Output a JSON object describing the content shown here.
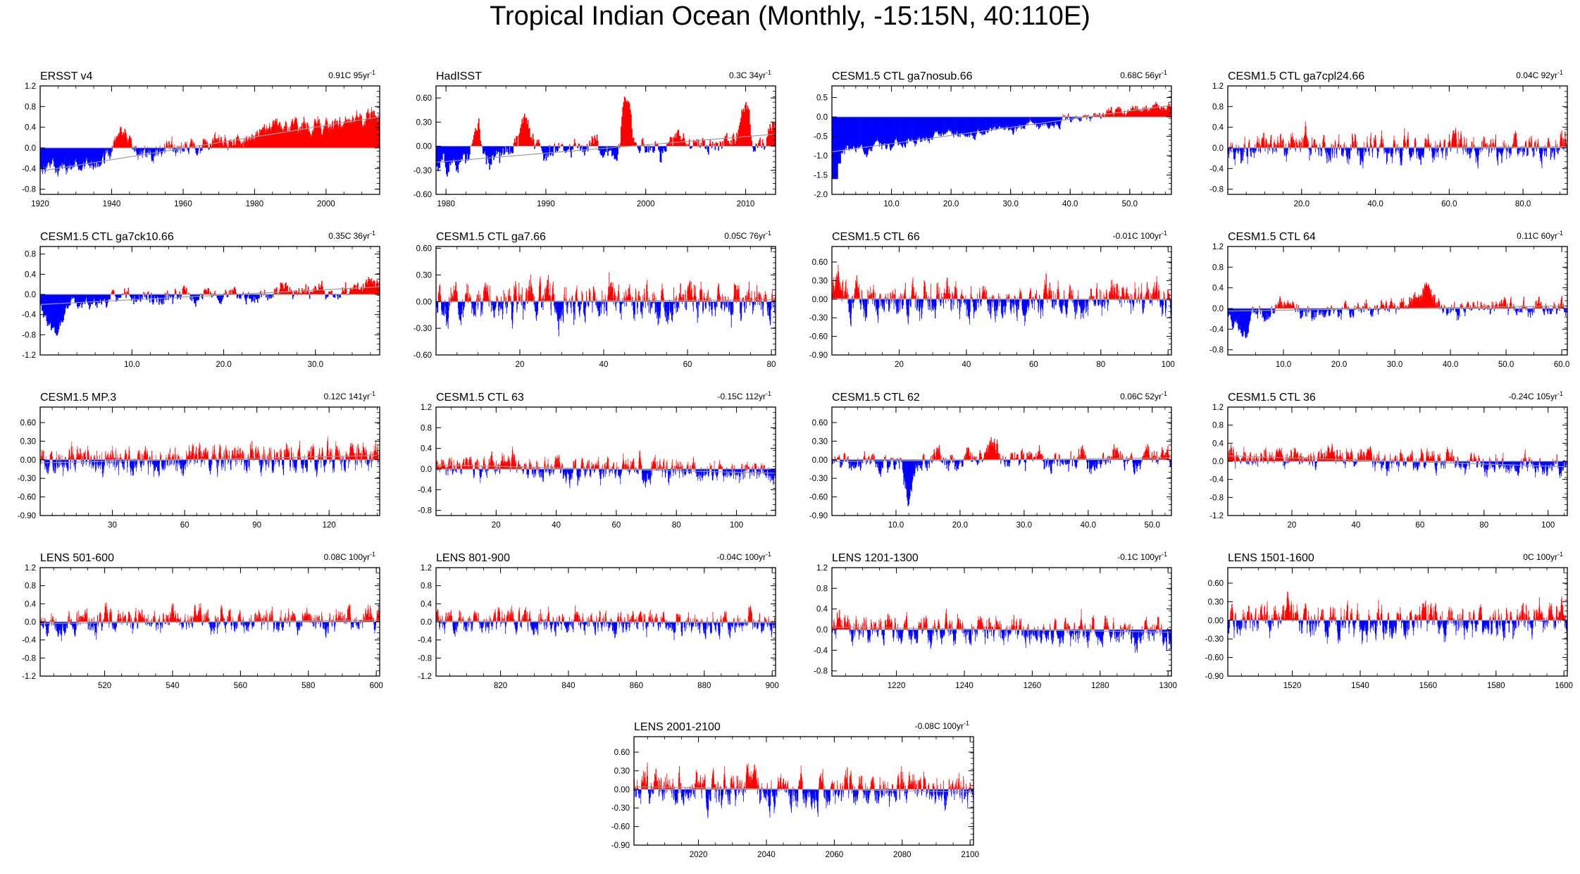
{
  "title": "Tropical Indian Ocean (Monthly, -15:15N, 40:110E)",
  "colors": {
    "positive": "#ff0000",
    "negative": "#0000ff",
    "axis": "#000000",
    "zero_line": "#999999"
  },
  "chart_data": [
    {
      "type": "bar",
      "name": "ERSST v4",
      "subtitle": "0.91C 95yr",
      "sup": "-1",
      "xlim": [
        1920,
        2015
      ],
      "xticks": [
        1920,
        1940,
        1960,
        1980,
        2000
      ],
      "ylim": [
        -0.9,
        1.2
      ],
      "yticks": [
        "-0.8",
        "-0.4",
        "0.0",
        "0.4",
        "0.8",
        "1.2"
      ],
      "trend": [
        -0.45,
        0.6
      ],
      "amp": 0.18,
      "events": [
        [
          1943,
          0.45,
          4
        ],
        [
          1985,
          0.3,
          3
        ]
      ],
      "seed": 1
    },
    {
      "type": "bar",
      "name": "HadISST",
      "subtitle": "0.3C 34yr",
      "sup": "-1",
      "xlim": [
        1979,
        2013
      ],
      "xticks": [
        1980,
        1990,
        2000,
        2010
      ],
      "ylim": [
        -0.6,
        0.75
      ],
      "yticks": [
        "-0.60",
        "-0.30",
        "0.00",
        "0.30",
        "0.60"
      ],
      "trend": [
        -0.2,
        0.15
      ],
      "amp": 0.18,
      "events": [
        [
          1983,
          0.45,
          1
        ],
        [
          1988,
          0.45,
          1.2
        ],
        [
          1998,
          0.65,
          0.8
        ],
        [
          2010,
          0.35,
          0.8
        ]
      ],
      "seed": 2
    },
    {
      "type": "bar",
      "name": "CESM1.5 CTL ga7nosub.66",
      "subtitle": "0.68C 56yr",
      "sup": "-1",
      "xlim": [
        0,
        57
      ],
      "xticks": [
        "10.0",
        "20.0",
        "30.0",
        "40.0",
        "50.0"
      ],
      "ylim": [
        -2.0,
        0.8
      ],
      "yticks": [
        "-2.0",
        "-1.5",
        "-1.0",
        "-0.5",
        "0.0",
        "0.5"
      ],
      "trend": [
        -0.9,
        0.3
      ],
      "amp": 0.15,
      "events": [],
      "seed": 3,
      "spike": [
        [
          0.5,
          -1.6
        ],
        [
          1,
          -1.2
        ]
      ]
    },
    {
      "type": "bar",
      "name": "CESM1.5 CTL ga7cpl24.66",
      "subtitle": "0.04C 92yr",
      "sup": "-1",
      "xlim": [
        0,
        92
      ],
      "xticks": [
        "20.0",
        "40.0",
        "60.0",
        "80.0"
      ],
      "ylim": [
        -0.9,
        1.2
      ],
      "yticks": [
        "-0.8",
        "-0.4",
        "0.0",
        "0.4",
        "0.8",
        "1.2"
      ],
      "trend": [
        0,
        0.02
      ],
      "amp": 0.3,
      "events": [],
      "seed": 4
    },
    {
      "type": "bar",
      "name": "CESM1.5 CTL ga7ck10.66",
      "subtitle": "0.35C 36yr",
      "sup": "-1",
      "xlim": [
        0,
        37
      ],
      "xticks": [
        "10.0",
        "20.0",
        "30.0"
      ],
      "ylim": [
        -1.2,
        0.95
      ],
      "yticks": [
        "-1.2",
        "-0.8",
        "-0.4",
        "0.0",
        "0.4",
        "0.8"
      ],
      "trend": [
        -0.2,
        0.15
      ],
      "amp": 0.2,
      "events": [
        [
          1.5,
          -0.7,
          1.5
        ]
      ],
      "seed": 5
    },
    {
      "type": "bar",
      "name": "CESM1.5 CTL ga7.66",
      "subtitle": "0.05C 76yr",
      "sup": "-1",
      "xlim": [
        0,
        81
      ],
      "xticks": [
        20,
        40,
        60,
        80
      ],
      "ylim": [
        -0.6,
        0.62
      ],
      "yticks": [
        "-0.60",
        "-0.30",
        "0.00",
        "0.30",
        "0.60"
      ],
      "trend": [
        0,
        0.02
      ],
      "amp": 0.25,
      "events": [],
      "seed": 6
    },
    {
      "type": "bar",
      "name": "CESM1.5 CTL 66",
      "subtitle": "-0.01C 100yr",
      "sup": "-1",
      "xlim": [
        0,
        101
      ],
      "xticks": [
        20,
        40,
        60,
        80,
        100
      ],
      "ylim": [
        -0.9,
        0.85
      ],
      "yticks": [
        "-0.90",
        "-0.60",
        "-0.30",
        "0.00",
        "0.30",
        "0.60"
      ],
      "trend": [
        0.01,
        -0.01
      ],
      "amp": 0.3,
      "events": [
        [
          1.5,
          0.4,
          2
        ]
      ],
      "seed": 7
    },
    {
      "type": "bar",
      "name": "CESM1.5 CTL 64",
      "subtitle": "0.11C 60yr",
      "sup": "-1",
      "xlim": [
        0,
        61
      ],
      "xticks": [
        "10.0",
        "20.0",
        "30.0",
        "40.0",
        "50.0",
        "60.0"
      ],
      "ylim": [
        -0.9,
        1.2
      ],
      "yticks": [
        "-0.8",
        "-0.4",
        "0.0",
        "0.4",
        "0.8",
        "1.2"
      ],
      "trend": [
        -0.05,
        0.05
      ],
      "amp": 0.2,
      "events": [
        [
          2.5,
          -0.45,
          2.5
        ],
        [
          35,
          0.3,
          3
        ]
      ],
      "seed": 8
    },
    {
      "type": "bar",
      "name": "CESM1.5 MP.3",
      "subtitle": "0.12C 141yr",
      "sup": "-1",
      "xlim": [
        0,
        141
      ],
      "xticks": [
        30,
        60,
        90,
        120
      ],
      "ylim": [
        -0.9,
        0.85
      ],
      "yticks": [
        "-0.90",
        "-0.60",
        "-0.30",
        "0.00",
        "0.30",
        "0.60"
      ],
      "trend": [
        -0.05,
        0.07
      ],
      "amp": 0.25,
      "events": [],
      "seed": 9
    },
    {
      "type": "bar",
      "name": "CESM1.5 CTL 63",
      "subtitle": "-0.15C 112yr",
      "sup": "-1",
      "xlim": [
        0,
        113
      ],
      "xticks": [
        20,
        40,
        60,
        80,
        100
      ],
      "ylim": [
        -0.9,
        1.2
      ],
      "yticks": [
        "-0.8",
        "-0.4",
        "0.0",
        "0.4",
        "0.8",
        "1.2"
      ],
      "trend": [
        0.08,
        -0.08
      ],
      "amp": 0.25,
      "events": [],
      "seed": 10
    },
    {
      "type": "bar",
      "name": "CESM1.5 CTL 62",
      "subtitle": "0.06C 52yr",
      "sup": "-1",
      "xlim": [
        0,
        53
      ],
      "xticks": [
        "10.0",
        "20.0",
        "30.0",
        "40.0",
        "50.0"
      ],
      "ylim": [
        -0.9,
        0.85
      ],
      "yticks": [
        "-0.90",
        "-0.60",
        "-0.30",
        "0.00",
        "0.30",
        "0.60"
      ],
      "trend": [
        -0.03,
        0.03
      ],
      "amp": 0.2,
      "events": [
        [
          12,
          -0.55,
          1.2
        ],
        [
          25,
          0.3,
          2
        ]
      ],
      "seed": 11
    },
    {
      "type": "bar",
      "name": "CESM1.5 CTL 36",
      "subtitle": "-0.24C 105yr",
      "sup": "-1",
      "xlim": [
        0,
        106
      ],
      "xticks": [
        20,
        40,
        60,
        80,
        100
      ],
      "ylim": [
        -1.2,
        1.2
      ],
      "yticks": [
        "-1.2",
        "-0.8",
        "-0.4",
        "0.0",
        "0.4",
        "0.8",
        "1.2"
      ],
      "trend": [
        0.12,
        -0.12
      ],
      "amp": 0.25,
      "events": [],
      "seed": 12
    },
    {
      "type": "bar",
      "name": "LENS 501-600",
      "subtitle": "0.08C 100yr",
      "sup": "-1",
      "xlim": [
        501,
        601
      ],
      "xticks": [
        520,
        540,
        560,
        580,
        600
      ],
      "ylim": [
        -1.2,
        1.2
      ],
      "yticks": [
        "-1.2",
        "-0.8",
        "-0.4",
        "0.0",
        "0.4",
        "0.8",
        "1.2"
      ],
      "trend": [
        -0.04,
        0.04
      ],
      "amp": 0.3,
      "events": [],
      "seed": 13
    },
    {
      "type": "bar",
      "name": "LENS 801-900",
      "subtitle": "-0.04C 100yr",
      "sup": "-1",
      "xlim": [
        801,
        901
      ],
      "xticks": [
        820,
        840,
        860,
        880,
        900
      ],
      "ylim": [
        -1.2,
        1.2
      ],
      "yticks": [
        "-1.2",
        "-0.8",
        "-0.4",
        "0.0",
        "0.4",
        "0.8",
        "1.2"
      ],
      "trend": [
        0.02,
        -0.02
      ],
      "amp": 0.3,
      "events": [],
      "seed": 14
    },
    {
      "type": "bar",
      "name": "LENS 1201-1300",
      "subtitle": "-0.1C 100yr",
      "sup": "-1",
      "xlim": [
        1201,
        1301
      ],
      "xticks": [
        1220,
        1240,
        1260,
        1280,
        1300
      ],
      "ylim": [
        -0.9,
        1.2
      ],
      "yticks": [
        "-0.8",
        "-0.4",
        "0.0",
        "0.4",
        "0.8",
        "1.2"
      ],
      "trend": [
        0.05,
        -0.05
      ],
      "amp": 0.3,
      "events": [],
      "seed": 15
    },
    {
      "type": "bar",
      "name": "LENS 1501-1600",
      "subtitle": "0C 100yr",
      "sup": "-1",
      "xlim": [
        1501,
        1601
      ],
      "xticks": [
        1520,
        1540,
        1560,
        1580,
        1600
      ],
      "ylim": [
        -0.9,
        0.85
      ],
      "yticks": [
        "-0.90",
        "-0.60",
        "-0.30",
        "0.00",
        "0.30",
        "0.60"
      ],
      "trend": [
        0,
        0
      ],
      "amp": 0.3,
      "events": [],
      "seed": 16
    },
    {
      "type": "bar",
      "name": "LENS 2001-2100",
      "subtitle": "-0.08C 100yr",
      "sup": "-1",
      "xlim": [
        2001,
        2101
      ],
      "xticks": [
        2020,
        2040,
        2060,
        2080,
        2100
      ],
      "ylim": [
        -0.9,
        0.85
      ],
      "yticks": [
        "-0.90",
        "-0.60",
        "-0.30",
        "0.00",
        "0.30",
        "0.60"
      ],
      "trend": [
        0.04,
        -0.04
      ],
      "amp": 0.3,
      "events": [],
      "seed": 17
    }
  ]
}
